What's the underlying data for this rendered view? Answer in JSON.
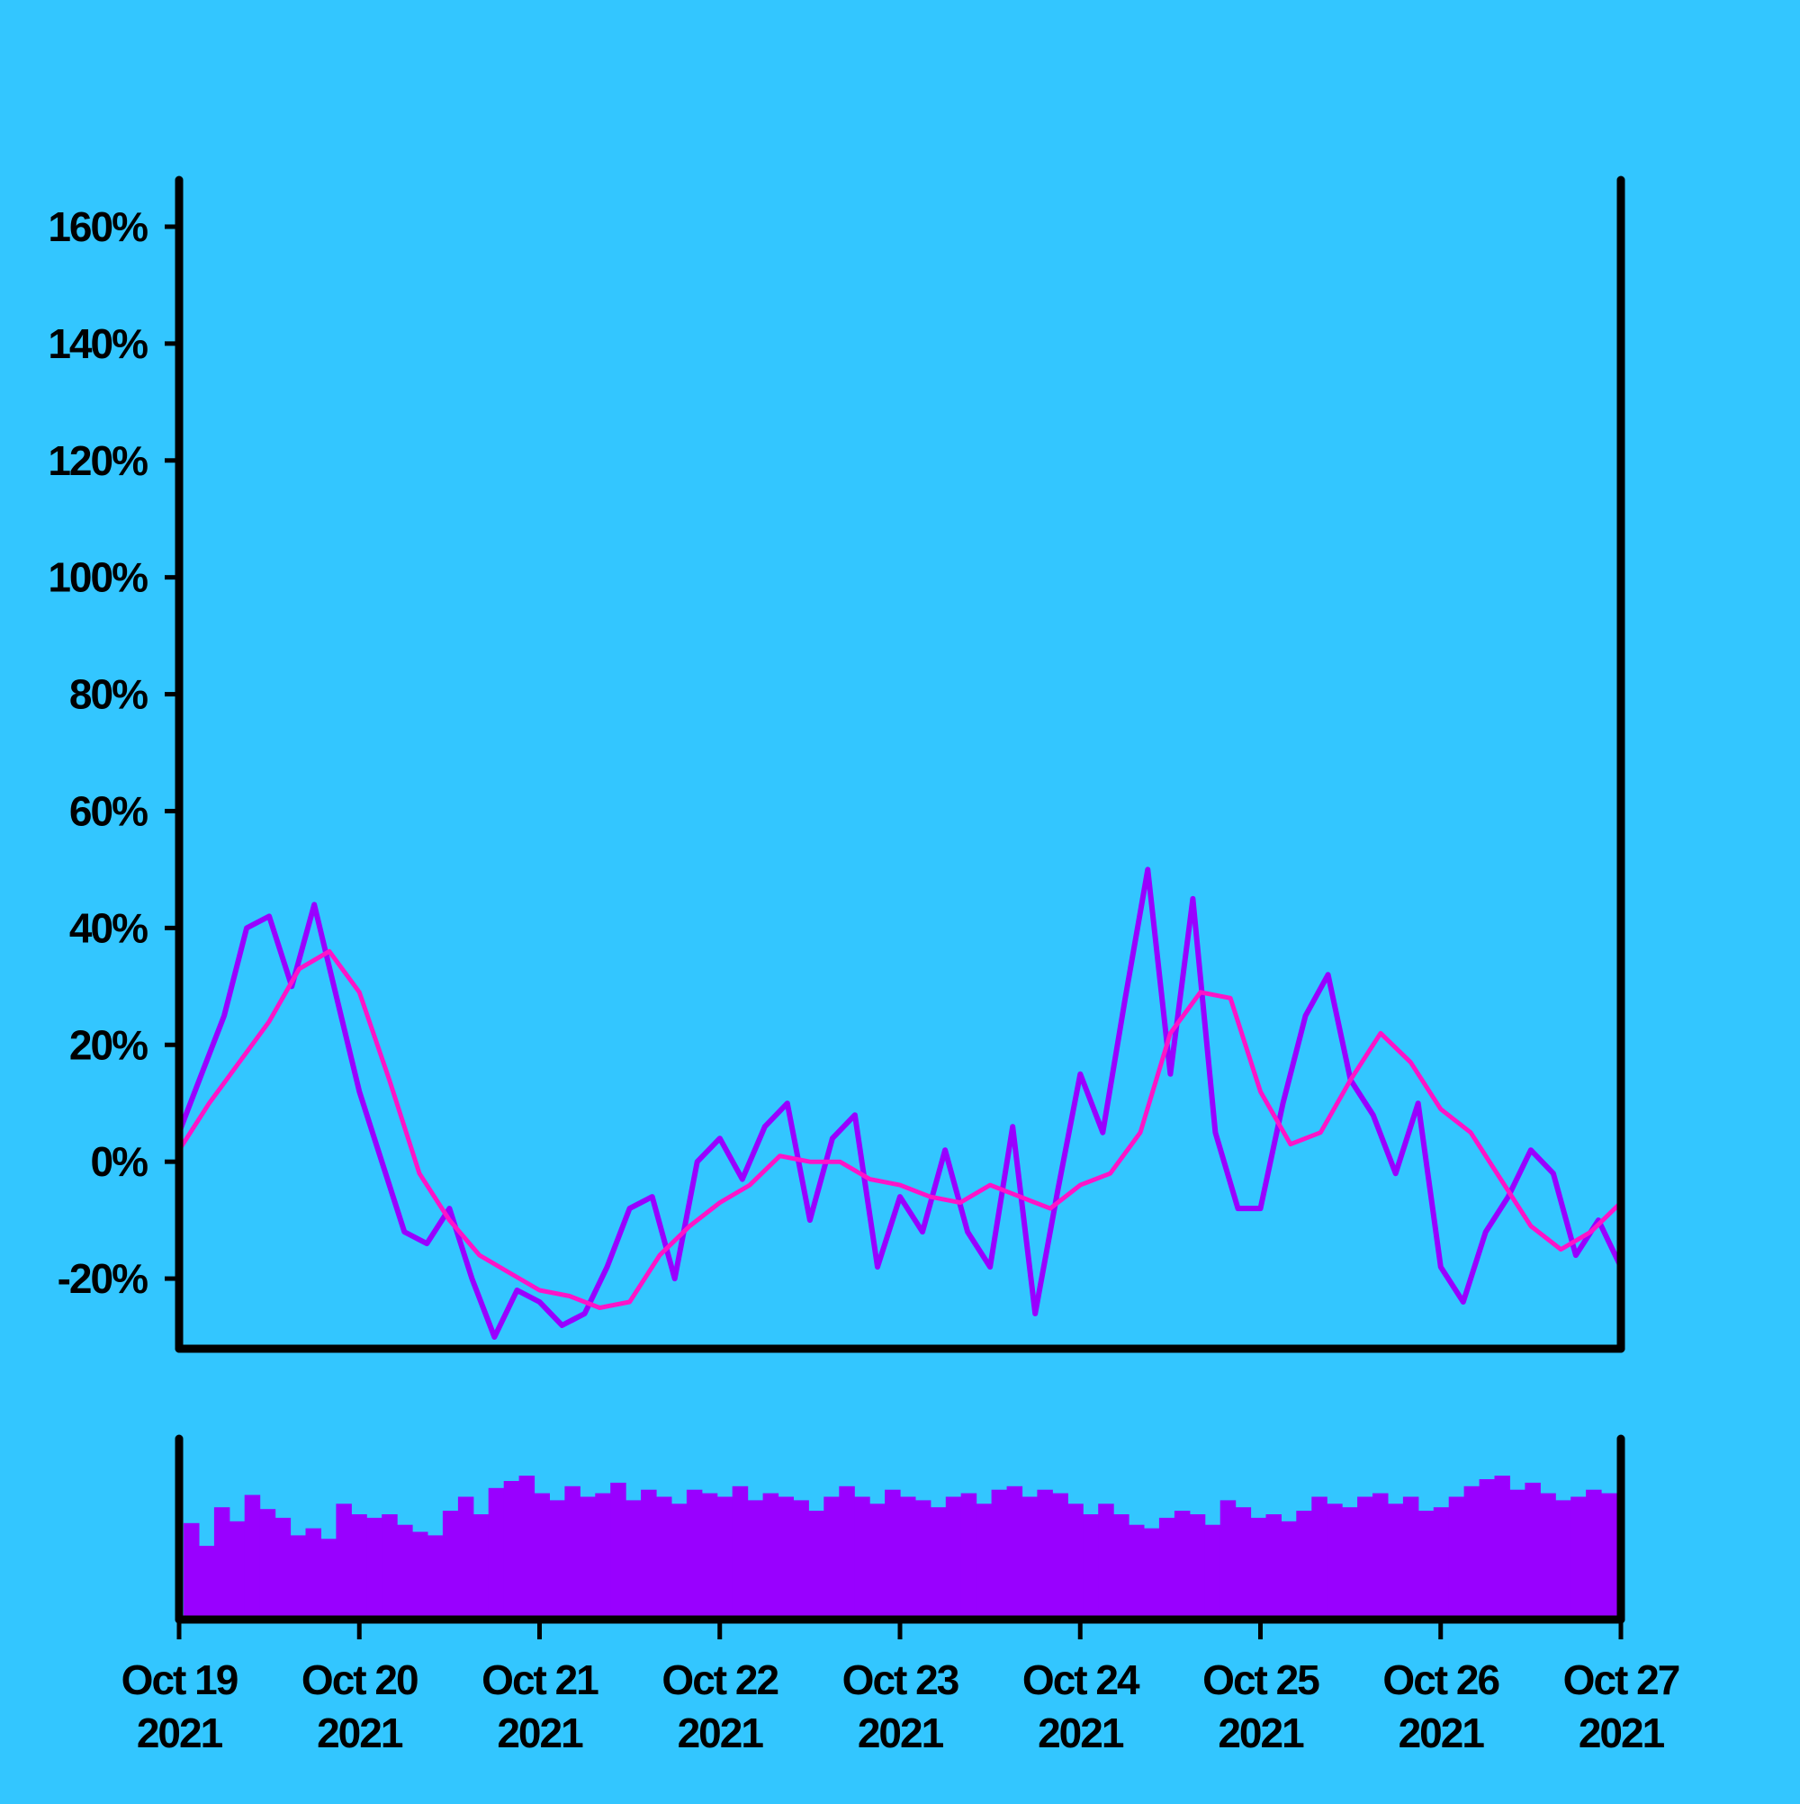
{
  "colors": {
    "background": "#33c6ff",
    "axis": "#000000",
    "price_line": "#9900ff",
    "moving_average": "#ff14c8",
    "volume": "#9900ff"
  },
  "chart_data": {
    "type": "line",
    "title": "",
    "xlabel": "",
    "ylabel": "",
    "y_tick_labels": [
      "160%",
      "140%",
      "120%",
      "100%",
      "80%",
      "60%",
      "40%",
      "20%",
      "0%",
      "-20%"
    ],
    "y_tick_values": [
      160,
      140,
      120,
      100,
      80,
      60,
      40,
      20,
      0,
      -20
    ],
    "ylim": [
      -32,
      168
    ],
    "x_tick_labels": [
      {
        "month_day": "Oct 19",
        "year": "2021"
      },
      {
        "month_day": "Oct 20",
        "year": "2021"
      },
      {
        "month_day": "Oct 21",
        "year": "2021"
      },
      {
        "month_day": "Oct 22",
        "year": "2021"
      },
      {
        "month_day": "Oct 23",
        "year": "2021"
      },
      {
        "month_day": "Oct 24",
        "year": "2021"
      },
      {
        "month_day": "Oct 25",
        "year": "2021"
      },
      {
        "month_day": "Oct 26",
        "year": "2021"
      },
      {
        "month_day": "Oct 27",
        "year": "2021"
      }
    ],
    "xlim": [
      "2021-10-19",
      "2021-10-27"
    ],
    "grid": false,
    "legend": "none",
    "series": [
      {
        "kind": "line",
        "x": [
          "2021-10-19T00:00",
          "2021-10-19T03:00",
          "2021-10-19T06:00",
          "2021-10-19T09:00",
          "2021-10-19T12:00",
          "2021-10-19T15:00",
          "2021-10-19T18:00",
          "2021-10-19T21:00",
          "2021-10-20T00:00",
          "2021-10-20T03:00",
          "2021-10-20T06:00",
          "2021-10-20T09:00",
          "2021-10-20T12:00",
          "2021-10-20T15:00",
          "2021-10-20T18:00",
          "2021-10-20T21:00",
          "2021-10-21T00:00",
          "2021-10-21T03:00",
          "2021-10-21T06:00",
          "2021-10-21T09:00",
          "2021-10-21T12:00",
          "2021-10-21T15:00",
          "2021-10-21T18:00",
          "2021-10-21T21:00",
          "2021-10-22T00:00",
          "2021-10-22T03:00",
          "2021-10-22T06:00",
          "2021-10-22T09:00",
          "2021-10-22T12:00",
          "2021-10-22T15:00",
          "2021-10-22T18:00",
          "2021-10-22T21:00",
          "2021-10-23T00:00",
          "2021-10-23T03:00",
          "2021-10-23T06:00",
          "2021-10-23T09:00",
          "2021-10-23T12:00",
          "2021-10-23T15:00",
          "2021-10-23T18:00",
          "2021-10-23T21:00",
          "2021-10-24T00:00",
          "2021-10-24T03:00",
          "2021-10-24T06:00",
          "2021-10-24T09:00",
          "2021-10-24T12:00",
          "2021-10-24T15:00",
          "2021-10-24T18:00",
          "2021-10-24T21:00",
          "2021-10-25T00:00",
          "2021-10-25T03:00",
          "2021-10-25T06:00",
          "2021-10-25T09:00",
          "2021-10-25T12:00",
          "2021-10-25T15:00",
          "2021-10-25T18:00",
          "2021-10-25T21:00",
          "2021-10-26T00:00",
          "2021-10-26T03:00",
          "2021-10-26T06:00",
          "2021-10-26T09:00",
          "2021-10-26T12:00",
          "2021-10-26T15:00",
          "2021-10-26T18:00",
          "2021-10-26T21:00",
          "2021-10-27T00:00"
        ],
        "values": [
          5,
          15,
          25,
          40,
          42,
          30,
          44,
          28,
          12,
          0,
          -12,
          -14,
          -8,
          -20,
          -30,
          -22,
          -24,
          -28,
          -26,
          -18,
          -8,
          -6,
          -20,
          0,
          4,
          -3,
          6,
          10,
          -10,
          4,
          8,
          -18,
          -6,
          -12,
          2,
          -12,
          -18,
          6,
          -26,
          -5,
          15,
          5,
          28,
          50,
          15,
          45,
          5,
          -8,
          -8,
          10,
          25,
          32,
          14,
          8,
          -2,
          10,
          -18,
          -24,
          -12,
          -6,
          2,
          -2,
          -16,
          -10,
          -18
        ]
      },
      {
        "kind": "moving_average",
        "x": [
          "2021-10-19T00:00",
          "2021-10-19T04:00",
          "2021-10-19T08:00",
          "2021-10-19T12:00",
          "2021-10-19T16:00",
          "2021-10-19T20:00",
          "2021-10-20T00:00",
          "2021-10-20T04:00",
          "2021-10-20T08:00",
          "2021-10-20T12:00",
          "2021-10-20T16:00",
          "2021-10-20T20:00",
          "2021-10-21T00:00",
          "2021-10-21T04:00",
          "2021-10-21T08:00",
          "2021-10-21T12:00",
          "2021-10-21T16:00",
          "2021-10-21T20:00",
          "2021-10-22T00:00",
          "2021-10-22T04:00",
          "2021-10-22T08:00",
          "2021-10-22T12:00",
          "2021-10-22T16:00",
          "2021-10-22T20:00",
          "2021-10-23T00:00",
          "2021-10-23T04:00",
          "2021-10-23T08:00",
          "2021-10-23T12:00",
          "2021-10-23T16:00",
          "2021-10-23T20:00",
          "2021-10-24T00:00",
          "2021-10-24T04:00",
          "2021-10-24T08:00",
          "2021-10-24T12:00",
          "2021-10-24T16:00",
          "2021-10-24T20:00",
          "2021-10-25T00:00",
          "2021-10-25T04:00",
          "2021-10-25T08:00",
          "2021-10-25T12:00",
          "2021-10-25T16:00",
          "2021-10-25T20:00",
          "2021-10-26T00:00",
          "2021-10-26T04:00",
          "2021-10-26T08:00",
          "2021-10-26T12:00",
          "2021-10-26T16:00",
          "2021-10-26T20:00",
          "2021-10-27T00:00"
        ],
        "values": [
          2,
          10,
          17,
          24,
          33,
          36,
          29,
          14,
          -2,
          -10,
          -16,
          -19,
          -22,
          -23,
          -25,
          -24,
          -16,
          -11,
          -7,
          -4,
          1,
          0,
          0,
          -3,
          -4,
          -6,
          -7,
          -4,
          -6,
          -8,
          -4,
          -2,
          5,
          22,
          29,
          28,
          12,
          3,
          5,
          14,
          22,
          17,
          9,
          5,
          -3,
          -11,
          -15,
          -12,
          -7
        ]
      },
      {
        "kind": "volume",
        "x_start": "2021-10-19",
        "x_end": "2021-10-27",
        "values": [
          55,
          42,
          64,
          56,
          71,
          63,
          58,
          48,
          52,
          46,
          66,
          60,
          58,
          60,
          54,
          50,
          48,
          62,
          70,
          60,
          75,
          79,
          82,
          72,
          68,
          76,
          70,
          72,
          78,
          68,
          74,
          70,
          66,
          74,
          72,
          70,
          76,
          68,
          72,
          70,
          68,
          62,
          70,
          76,
          70,
          66,
          74,
          70,
          68,
          64,
          70,
          72,
          66,
          74,
          76,
          70,
          74,
          72,
          66,
          60,
          66,
          60,
          54,
          52,
          58,
          62,
          60,
          54,
          68,
          64,
          58,
          60,
          56,
          62,
          70,
          66,
          64,
          70,
          72,
          66,
          70,
          62,
          64,
          70,
          76,
          80,
          82,
          74,
          78,
          72,
          68,
          70,
          74,
          72
        ]
      }
    ]
  }
}
